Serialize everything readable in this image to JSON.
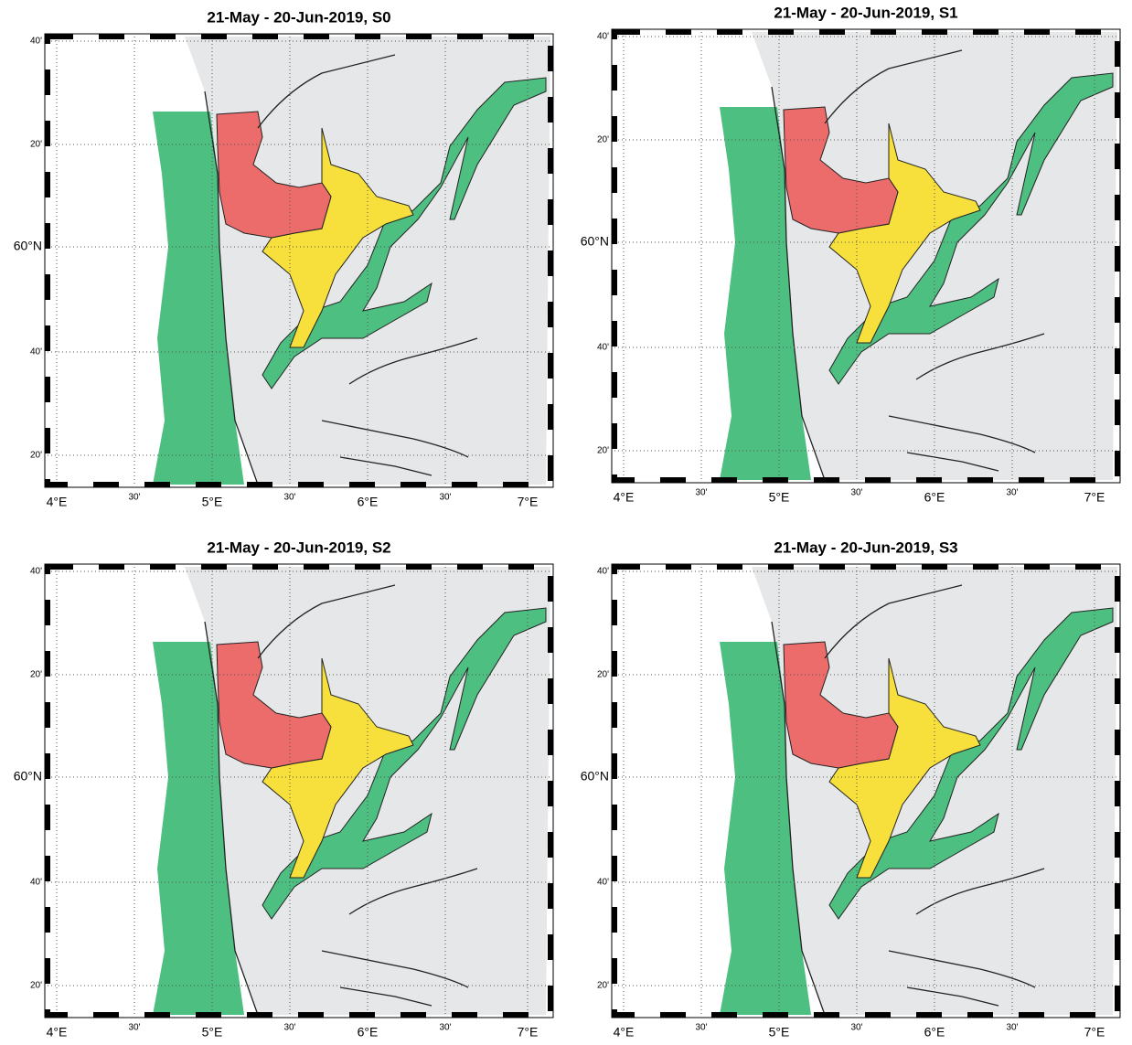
{
  "panels": [
    {
      "title": "21-May - 20-Jun-2019, S0",
      "x_labels": [
        "4°E",
        "30'",
        "5°E",
        "30'",
        "6°E",
        "30'",
        "7°E"
      ],
      "y_labels": [
        "40'",
        "20'",
        "60°N",
        "40'",
        "20'"
      ]
    },
    {
      "title": "21-May - 20-Jun-2019, S1",
      "x_labels": [
        "4°E",
        "30'",
        "5°E",
        "30'",
        "6°E",
        "30'",
        "7°E"
      ],
      "y_labels": [
        "40'",
        "20'",
        "60°N",
        "40'",
        "20'"
      ]
    },
    {
      "title": "21-May - 20-Jun-2019, S2",
      "x_labels": [
        "4°E",
        "30'",
        "5°E",
        "30'",
        "6°E",
        "30'",
        "7°E"
      ],
      "y_labels": [
        "40'",
        "20'",
        "60°N",
        "40'",
        "20'"
      ]
    },
    {
      "title": "21-May - 20-Jun-2019, S3",
      "x_labels": [
        "4°E",
        "30'",
        "5°E",
        "30'",
        "6°E",
        "30'",
        "7°E"
      ],
      "y_labels": [
        "40'",
        "20'",
        "60°N",
        "40'",
        "20'"
      ]
    }
  ]
}
